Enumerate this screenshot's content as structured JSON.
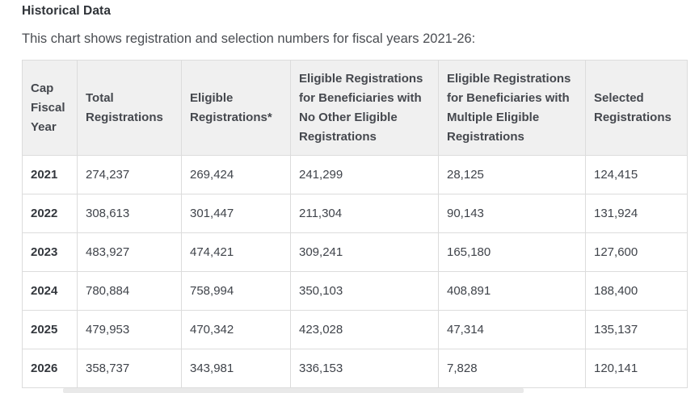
{
  "section": {
    "title": "Historical Data",
    "intro": "This chart shows registration and selection numbers for fiscal years 2021-26:"
  },
  "table": {
    "columns": [
      "Cap Fiscal Year",
      "Total Registrations",
      "Eligible Registrations*",
      "Eligible Registrations for Beneficiaries with No Other Eligible Registrations",
      "Eligible Registrations for Beneficiaries with Multiple Eligible Registrations",
      "Selected Registrations"
    ],
    "rows": [
      {
        "year": "2021",
        "values": [
          "274,237",
          "269,424",
          "241,299",
          "28,125",
          "124,415"
        ]
      },
      {
        "year": "2022",
        "values": [
          "308,613",
          "301,447",
          "211,304",
          "90,143",
          "131,924"
        ]
      },
      {
        "year": "2023",
        "values": [
          "483,927",
          "474,421",
          "309,241",
          "165,180",
          "127,600"
        ]
      },
      {
        "year": "2024",
        "values": [
          "780,884",
          "758,994",
          "350,103",
          "408,891",
          "188,400"
        ]
      },
      {
        "year": "2025",
        "values": [
          "479,953",
          "470,342",
          "423,028",
          "47,314",
          "135,137"
        ]
      },
      {
        "year": "2026",
        "values": [
          "358,737",
          "343,981",
          "336,153",
          "7,828",
          "120,141"
        ]
      }
    ]
  },
  "colors": {
    "header_background": "#f0f0f0",
    "table_border": "#dcdcdc",
    "header_text": "#45484e",
    "body_text": "#3f434a"
  }
}
